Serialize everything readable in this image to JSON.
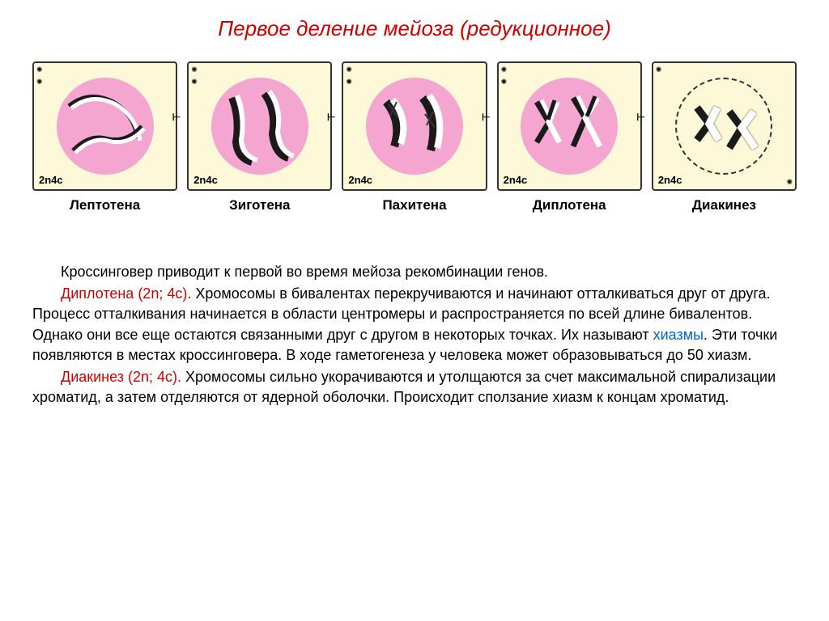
{
  "title": "Первое деление мейоза (редукционное)",
  "title_color": "#cc0000",
  "phases": [
    {
      "name": "Лептотена",
      "ploidy": "2n4c"
    },
    {
      "name": "Зиготена",
      "ploidy": "2n4c"
    },
    {
      "name": "Пахитена",
      "ploidy": "2n4c"
    },
    {
      "name": "Диплотена",
      "ploidy": "2n4c"
    },
    {
      "name": "Диакинез",
      "ploidy": "2n4c"
    }
  ],
  "cell_background": "#fcf8d8",
  "nucleus_color": "#f4a6d0",
  "chromosome_dark": "#1a1a1a",
  "chromosome_light": "#ffffff",
  "border_color": "#333333",
  "paragraphs": [
    {
      "segments": [
        {
          "text": "Кроссинговер приводит к первой во время мейоза рекомбинации генов.",
          "class": ""
        }
      ]
    },
    {
      "segments": [
        {
          "text": "Диплотена (2n; 4c).",
          "class": "highlight-red"
        },
        {
          "text": " Хромосомы в бивалентах перекручиваются и начинают отталкиваться друг от друга. Процесс отталкивания начинается в области центромеры и распространяется по всей длине бивалентов. Однако они все еще остаются связанными друг с другом в некоторых точках. Их называют ",
          "class": ""
        },
        {
          "text": "хиазмы",
          "class": "highlight-blue"
        },
        {
          "text": ". Эти точки появляются в местах кроссинговера. В ходе гаметогенеза у человека может образовываться до 50 хиазм.",
          "class": ""
        }
      ]
    },
    {
      "segments": [
        {
          "text": "Диакинез (2n; 4c).",
          "class": "highlight-red"
        },
        {
          "text": " Хромосомы сильно укорачиваются и утолщаются за счет максимальной спирализации хроматид, а затем отделяются от ядерной оболочки. Происходит сползание хиазм к концам хроматид.",
          "class": ""
        }
      ]
    }
  ],
  "text_color": "#000000",
  "body_fontsize": 18
}
